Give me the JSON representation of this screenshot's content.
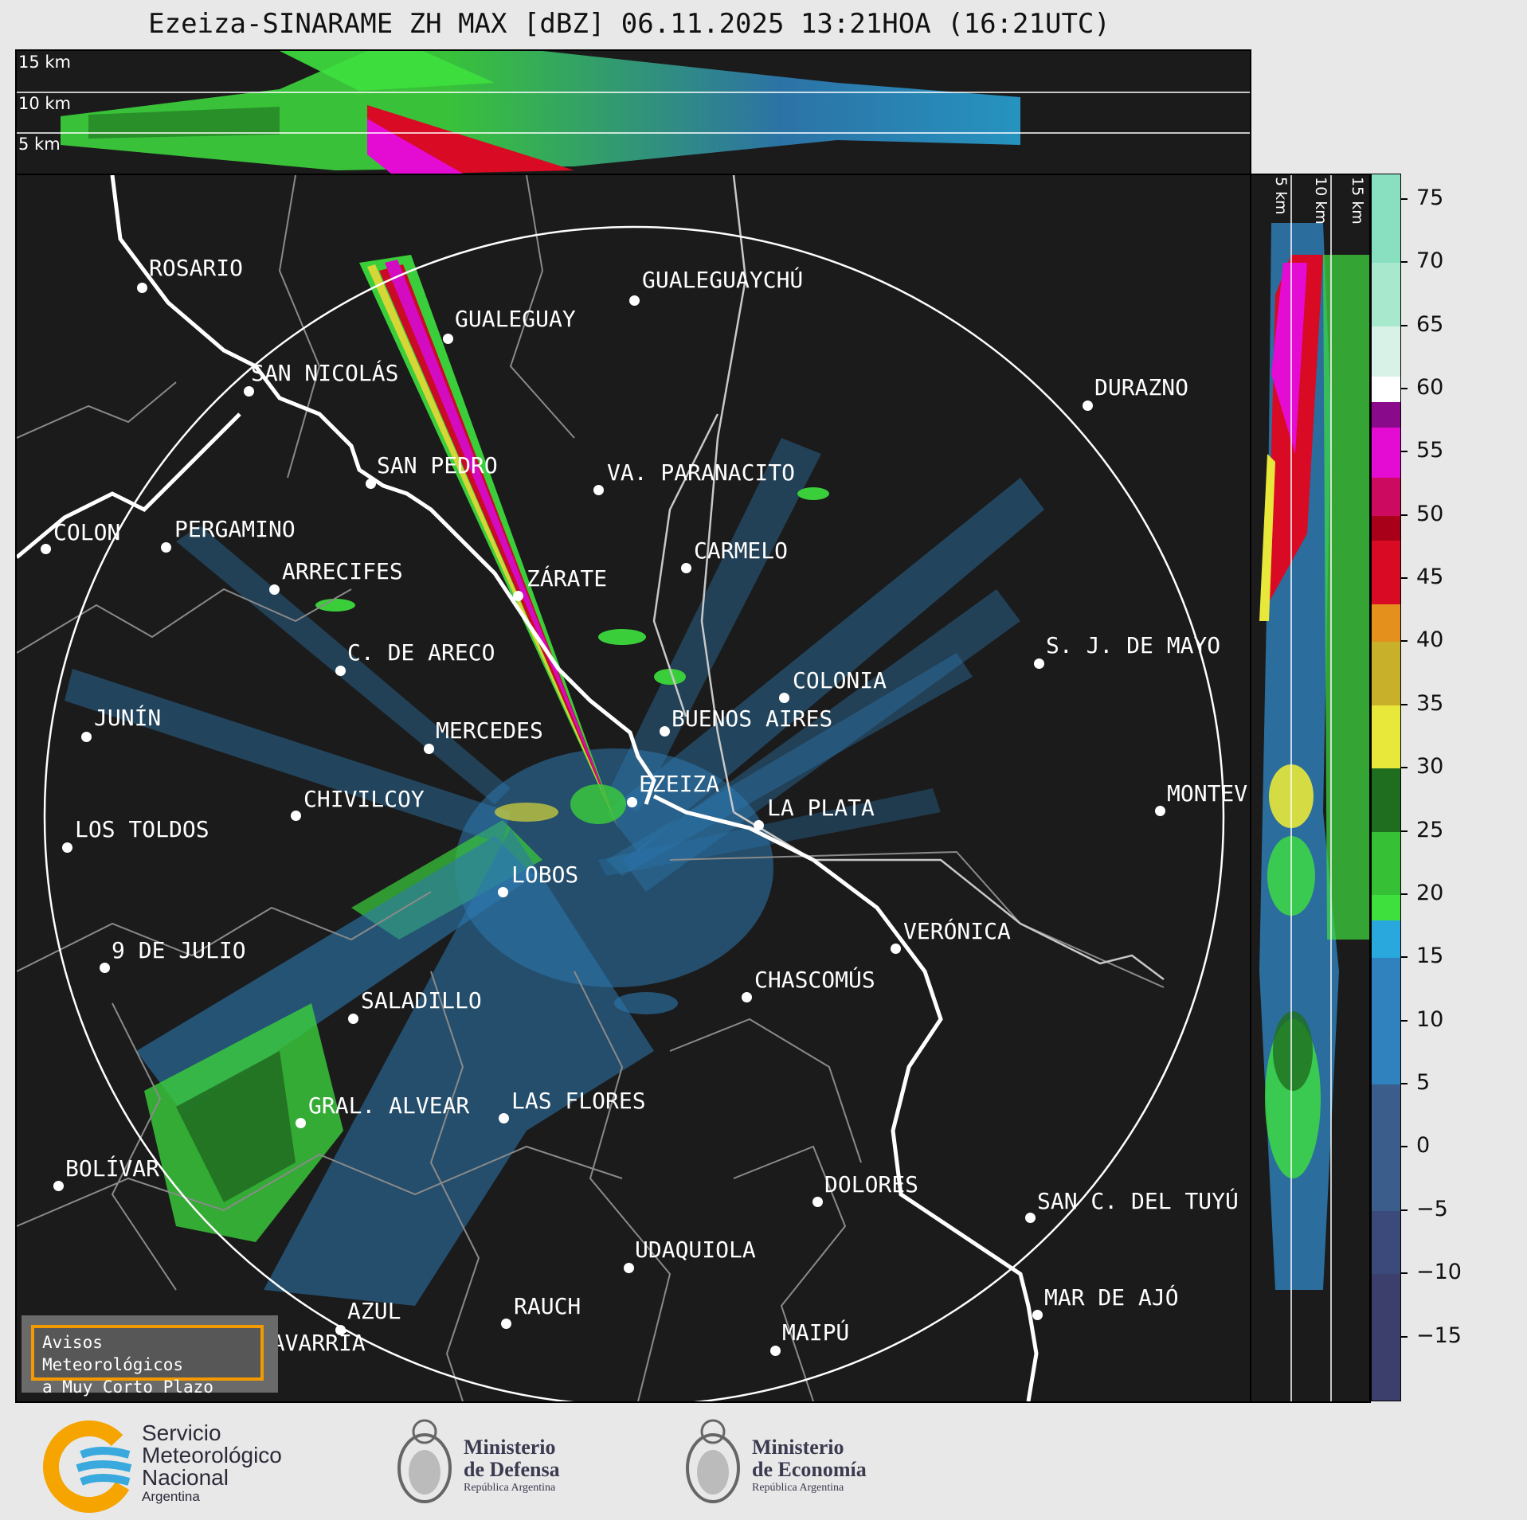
{
  "title": "Ezeiza-SINARAME ZH MAX [dBZ] 06.11.2025 13:21HOA (16:21UTC)",
  "top_panel": {
    "altitudes": [
      "15 km",
      "10 km",
      "5 km"
    ]
  },
  "side_panel": {
    "altitudes": [
      "5 km",
      "10 km",
      "15 km"
    ]
  },
  "cities": [
    {
      "name": "ROSARIO"
    },
    {
      "name": "GUALEGUAYCHÚ"
    },
    {
      "name": "GUALEGUAY"
    },
    {
      "name": "SAN NICOLÁS"
    },
    {
      "name": "DURAZNO"
    },
    {
      "name": "SAN PEDRO"
    },
    {
      "name": "VA. PARANACITO"
    },
    {
      "name": "COLON"
    },
    {
      "name": "PERGAMINO"
    },
    {
      "name": "CARMELO"
    },
    {
      "name": "ARRECIFES"
    },
    {
      "name": "ZÁRATE"
    },
    {
      "name": "S. J. DE MAYO"
    },
    {
      "name": "C. DE ARECO"
    },
    {
      "name": "COLONIA"
    },
    {
      "name": "JUNÍN"
    },
    {
      "name": "BUENOS AIRES"
    },
    {
      "name": "MERCEDES"
    },
    {
      "name": "EZEIZA"
    },
    {
      "name": "MONTEV"
    },
    {
      "name": "CHIVILCOY"
    },
    {
      "name": "LA PLATA"
    },
    {
      "name": "LOS TOLDOS"
    },
    {
      "name": "LOBOS"
    },
    {
      "name": "VERÓNICA"
    },
    {
      "name": "9 DE JULIO"
    },
    {
      "name": "CHASCOMÚS"
    },
    {
      "name": "SALADILLO"
    },
    {
      "name": "GRAL. ALVEAR"
    },
    {
      "name": "LAS FLORES"
    },
    {
      "name": "BOLÍVAR"
    },
    {
      "name": "DOLORES"
    },
    {
      "name": "SAN C. DEL TUYÚ"
    },
    {
      "name": "UDAQUIOLA"
    },
    {
      "name": "MAR DE AJÓ"
    },
    {
      "name": "RAUCH"
    },
    {
      "name": "AZUL"
    },
    {
      "name": "OLAVARRÍA"
    },
    {
      "name": "MAIPÚ"
    }
  ],
  "colorbar": {
    "unit": "dBZ",
    "ticks": [
      "75",
      "70",
      "65",
      "60",
      "55",
      "50",
      "45",
      "40",
      "35",
      "30",
      "25",
      "20",
      "15",
      "10",
      "5",
      "0",
      "−5",
      "−10",
      "−15"
    ],
    "colors": {
      "violet_low": "#3c3f6b",
      "blue_low": "#3b5d8c",
      "blue": "#2f82be",
      "cyan": "#28a8dc",
      "green": "#3ee03e",
      "dark_green": "#1f6e1f",
      "yellow": "#e8e83a",
      "orange": "#e3901c",
      "red": "#d90a24",
      "magenta": "#e40bd2",
      "purple": "#8a0a8c",
      "white": "#ffffff",
      "mint": "#88e0c0"
    }
  },
  "warning_box": {
    "line1": "Avisos Meteorológicos",
    "line2": "a Muy Corto Plazo"
  },
  "logos": {
    "smn": {
      "line1": "Servicio",
      "line2": "Meteorológico",
      "line3": "Nacional",
      "line4": "Argentina"
    },
    "defensa": {
      "line1": "Ministerio",
      "line2": "de Defensa",
      "line3": "República Argentina"
    },
    "economia": {
      "line1": "Ministerio",
      "line2": "de Economía",
      "line3": "República Argentina"
    }
  }
}
